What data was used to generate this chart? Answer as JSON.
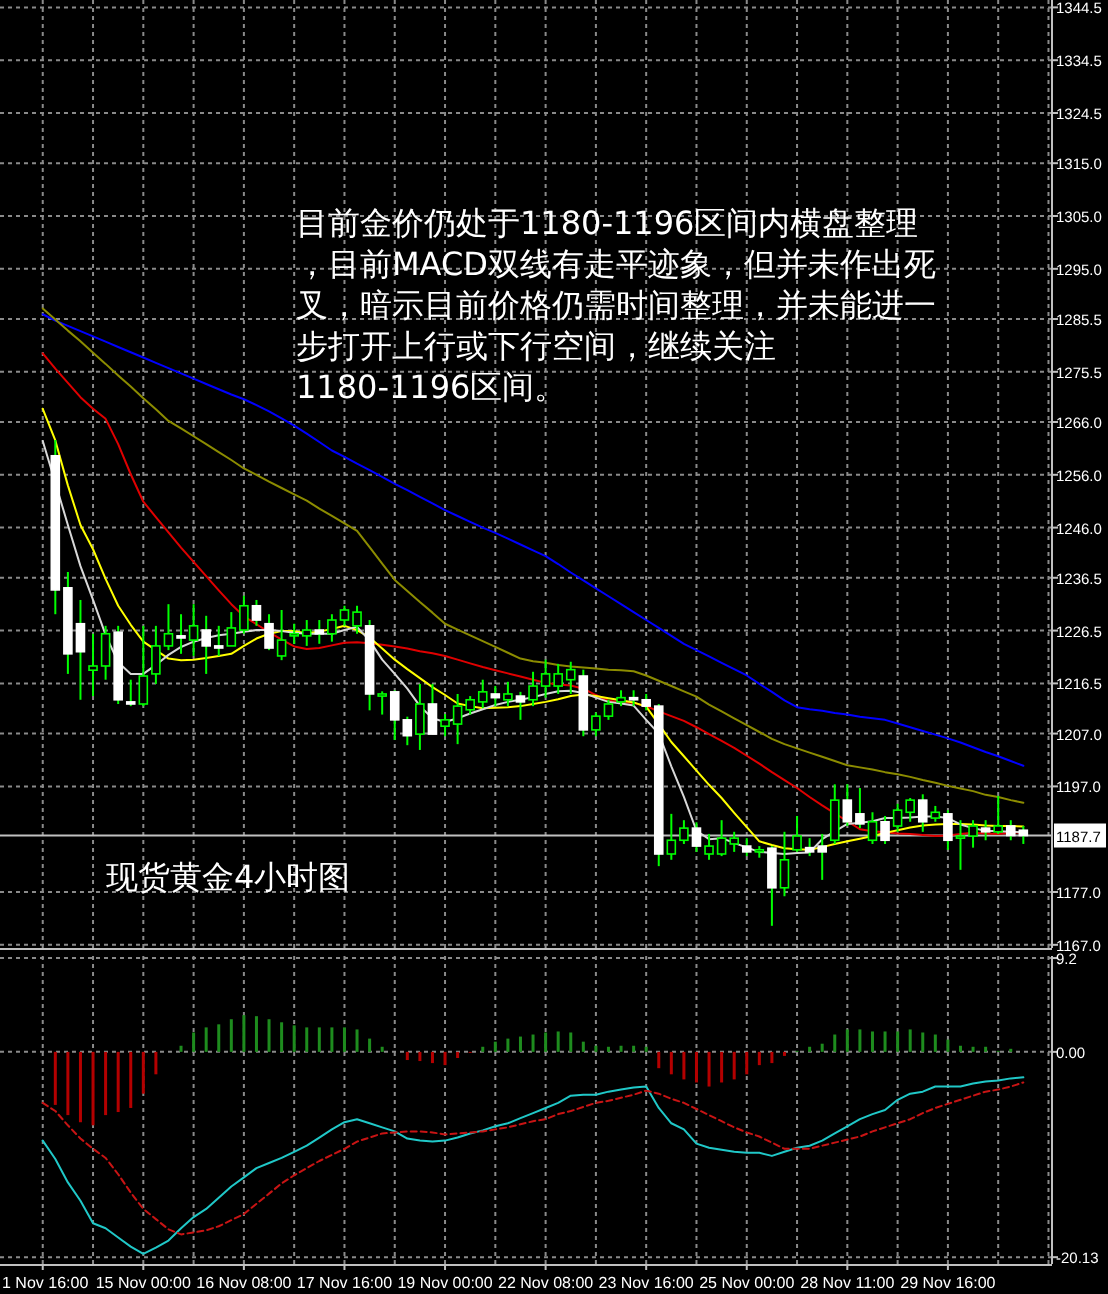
{
  "chart_data": [
    {
      "type": "candlestick",
      "categories": [
        null,
        null,
        null,
        null,
        null,
        null,
        null,
        null,
        null,
        null,
        null,
        null,
        null,
        null,
        null,
        null,
        null,
        null,
        null,
        null,
        null,
        null,
        null,
        null,
        null,
        null,
        null,
        null,
        null,
        null,
        null,
        null,
        null,
        null,
        null,
        null,
        null,
        null,
        null,
        null,
        null,
        null,
        null,
        null,
        null,
        null,
        null,
        null,
        null,
        null,
        null,
        null,
        null,
        null,
        null,
        null,
        null,
        null,
        null,
        null,
        null,
        null,
        null,
        null,
        null,
        null,
        null,
        null,
        null,
        null,
        null,
        null,
        null,
        null,
        null,
        null,
        null,
        null,
        null
      ],
      "ohlc": [
        null,
        [
          1259.6,
          1262.6,
          1229.6,
          1234.2
        ],
        [
          1234.6,
          1237.6,
          1218.3,
          1222.1
        ],
        [
          1227.8,
          1232.3,
          1213.4,
          1222.5
        ],
        [
          1219.0,
          1225.9,
          1214.1,
          1219.8
        ],
        [
          1219.8,
          1227.4,
          1217.2,
          1225.9
        ],
        [
          1226.2,
          1227.4,
          1212.6,
          1213.4
        ],
        [
          1213.0,
          1217.2,
          1212.2,
          1212.6
        ],
        [
          1212.6,
          1227.4,
          1212.2,
          1217.9
        ],
        [
          1218.3,
          1227.4,
          1216.4,
          1223.6
        ],
        [
          1223.6,
          1231.5,
          1222.8,
          1225.9
        ],
        [
          1225.5,
          1229.6,
          1222.1,
          1225.1
        ],
        [
          1224.7,
          1231.5,
          1221.7,
          1227.4
        ],
        [
          1226.6,
          1229.3,
          1218.3,
          1223.6
        ],
        [
          1223.6,
          1227.4,
          1221.7,
          1223.2
        ],
        [
          1223.6,
          1230.0,
          1223.6,
          1227.0
        ],
        [
          1226.6,
          1233.1,
          1225.9,
          1231.2
        ],
        [
          1231.2,
          1232.3,
          1227.4,
          1228.5
        ],
        [
          1227.8,
          1229.6,
          1222.8,
          1223.2
        ],
        [
          1221.7,
          1230.4,
          1220.9,
          1224.7
        ],
        [
          1225.5,
          1227.8,
          1224.0,
          1225.9
        ],
        [
          1225.5,
          1228.5,
          1223.6,
          1226.6
        ],
        [
          1226.6,
          1228.5,
          1224.0,
          1225.9
        ],
        [
          1225.9,
          1229.6,
          1224.4,
          1228.5
        ],
        [
          1228.5,
          1231.2,
          1227.4,
          1230.4
        ],
        [
          1227.4,
          1231.2,
          1225.9,
          1230.0
        ],
        [
          1227.4,
          1228.5,
          1211.4,
          1214.5
        ],
        [
          1214.1,
          1215.0,
          1210.6,
          1214.5
        ],
        [
          1214.9,
          1215.2,
          1205.8,
          1209.6
        ],
        [
          1209.6,
          1210.2,
          1204.8,
          1206.6
        ],
        [
          1206.9,
          1216.4,
          1203.9,
          1212.6
        ],
        [
          1212.6,
          1216.4,
          1206.9,
          1206.9
        ],
        [
          1208.4,
          1210.7,
          1206.5,
          1209.6
        ],
        [
          1208.8,
          1214.5,
          1205.0,
          1212.2
        ],
        [
          1211.5,
          1214.1,
          1210.6,
          1213.4
        ],
        [
          1213.0,
          1217.2,
          1211.8,
          1214.9
        ],
        [
          1214.5,
          1216.0,
          1212.2,
          1213.8
        ],
        [
          1213.4,
          1216.8,
          1212.2,
          1214.5
        ],
        [
          1214.1,
          1214.9,
          1209.6,
          1213.0
        ],
        [
          1213.4,
          1218.7,
          1212.2,
          1216.0
        ],
        [
          1216.0,
          1221.0,
          1213.8,
          1218.3
        ],
        [
          1216.0,
          1220.2,
          1214.5,
          1218.3
        ],
        [
          1217.2,
          1220.6,
          1214.5,
          1219.1
        ],
        [
          1217.9,
          1219.1,
          1206.5,
          1207.7
        ],
        [
          1207.7,
          1211.0,
          1206.5,
          1210.3
        ],
        [
          1210.3,
          1213.4,
          1209.6,
          1212.6
        ],
        [
          1213.0,
          1215.2,
          1212.2,
          1213.8
        ],
        [
          1213.8,
          1215.2,
          1212.2,
          1213.4
        ],
        [
          1213.4,
          1214.5,
          1211.4,
          1212.2
        ],
        [
          1212.2,
          1212.6,
          1181.9,
          1184.2
        ],
        [
          1184.2,
          1191.8,
          1183.1,
          1186.8
        ],
        [
          1186.8,
          1190.6,
          1186.1,
          1189.1
        ],
        [
          1189.1,
          1190.2,
          1184.6,
          1185.7
        ],
        [
          1184.2,
          1188.0,
          1183.1,
          1185.7
        ],
        [
          1184.2,
          1190.6,
          1183.8,
          1187.2
        ],
        [
          1186.1,
          1188.4,
          1184.6,
          1187.2
        ],
        [
          1185.7,
          1187.2,
          1183.8,
          1184.6
        ],
        [
          1184.6,
          1185.7,
          1183.5,
          1185.0
        ],
        [
          1185.3,
          1185.7,
          1170.6,
          1177.8
        ],
        [
          1177.8,
          1188.4,
          1176.2,
          1183.1
        ],
        [
          1185.0,
          1191.4,
          1184.6,
          1187.6
        ],
        [
          1185.4,
          1187.2,
          1183.8,
          1184.6
        ],
        [
          1185.7,
          1188.0,
          1179.3,
          1184.6
        ],
        [
          1186.8,
          1197.4,
          1186.1,
          1194.4
        ],
        [
          1194.4,
          1197.4,
          1189.5,
          1190.3
        ],
        [
          1191.8,
          1196.7,
          1189.1,
          1189.9
        ],
        [
          1186.8,
          1192.1,
          1186.1,
          1190.3
        ],
        [
          1190.3,
          1191.4,
          1186.1,
          1186.8
        ],
        [
          1189.5,
          1193.7,
          1188.4,
          1192.5
        ],
        [
          1192.1,
          1194.8,
          1190.3,
          1194.4
        ],
        [
          1194.4,
          1195.5,
          1188.4,
          1190.3
        ],
        [
          1191.0,
          1193.3,
          1190.3,
          1192.1
        ],
        [
          1191.8,
          1192.5,
          1185.0,
          1186.8
        ],
        [
          1187.2,
          1190.6,
          1181.2,
          1187.6
        ],
        [
          1187.6,
          1190.6,
          1185.4,
          1189.5
        ],
        [
          1189.1,
          1190.6,
          1186.8,
          1188.4
        ],
        [
          1188.4,
          1195.2,
          1188.0,
          1189.5
        ],
        [
          1189.5,
          1190.6,
          1186.8,
          1187.7
        ],
        [
          1188.7,
          1189.5,
          1186.1,
          1187.7
        ]
      ],
      "series": [
        {
          "type": "line",
          "color": "#0000ff",
          "values": [
            1286.4,
            1285.2,
            1284.2,
            1283.2,
            1282.2,
            1281.2,
            1280.2,
            1279.2,
            1278.2,
            1277.2,
            1276.2,
            1275.2,
            1274.2,
            1273.2,
            1272.2,
            1271.2,
            1270.3,
            1269.2,
            1268,
            1266.7,
            1265.3,
            1263.8,
            1262.2,
            1260.6,
            1259.4,
            1258.1,
            1256.9,
            1255.6,
            1254.3,
            1253.1,
            1251.8,
            1250.6,
            1249.3,
            1248.2,
            1247.1,
            1246,
            1245,
            1243.9,
            1242.8,
            1241.7,
            1240.6,
            1239.1,
            1237.5,
            1236,
            1234.5,
            1233,
            1231.5,
            1230,
            1228.5,
            1227,
            1225.5,
            1224,
            1222.8,
            1221.6,
            1220.4,
            1219.2,
            1218,
            1216.4,
            1214.9,
            1213.3,
            1212,
            1211.6,
            1211.3,
            1210.9,
            1210.6,
            1210.2,
            1209.9,
            1209.6,
            1208.9,
            1208.2,
            1207.5,
            1206.8,
            1206.1,
            1205.3,
            1204.4,
            1203.5,
            1202.7,
            1201.8,
            1200.9
          ]
        },
        {
          "type": "line",
          "color": "#8c8c00",
          "values": [
            1287.5,
            1285.4,
            1283.3,
            1281.3,
            1279.1,
            1277,
            1274.8,
            1272.7,
            1270.5,
            1268.4,
            1266.2,
            1264.8,
            1263.3,
            1261.8,
            1260.3,
            1258.8,
            1257.2,
            1256,
            1254.7,
            1253.5,
            1252.3,
            1251.1,
            1249.6,
            1248.2,
            1246.8,
            1245.4,
            1242.3,
            1239.2,
            1236.1,
            1234,
            1231.9,
            1229.9,
            1227.8,
            1226.7,
            1225.6,
            1224.5,
            1223.4,
            1222.3,
            1221.2,
            1220.7,
            1220.4,
            1220,
            1219.7,
            1219.5,
            1219.3,
            1219.1,
            1219,
            1218.8,
            1218,
            1217,
            1216,
            1215,
            1214,
            1212.5,
            1211.2,
            1209.9,
            1208.6,
            1207.3,
            1206,
            1205,
            1204.2,
            1203.4,
            1202.6,
            1201.8,
            1201,
            1200.6,
            1200.2,
            1199.7,
            1199.3,
            1198.8,
            1198.2,
            1197.7,
            1197.1,
            1196.6,
            1196.1,
            1195.4,
            1195,
            1194.4,
            1193.9
          ]
        },
        {
          "type": "line",
          "color": "#e00000",
          "values": [
            1279,
            1276.1,
            1273.4,
            1270.7,
            1268.5,
            1266.6,
            1261.8,
            1256.1,
            1250.9,
            1248,
            1245.1,
            1242.2,
            1239.5,
            1236.8,
            1234.1,
            1231.5,
            1229.2,
            1227.7,
            1226.2,
            1224.8,
            1223.5,
            1223,
            1223.2,
            1223.7,
            1224.2,
            1224.3,
            1224.1,
            1223.8,
            1223.5,
            1223.1,
            1222.6,
            1222.2,
            1221.7,
            1221,
            1220.3,
            1219.6,
            1219,
            1218.4,
            1217.8,
            1217.2,
            1216.6,
            1216.3,
            1216.1,
            1215.5,
            1214.3,
            1213.2,
            1213,
            1212.8,
            1212.2,
            1211.2,
            1210.3,
            1209.4,
            1208.2,
            1206.9,
            1205.6,
            1204.3,
            1202.8,
            1201.3,
            1199.7,
            1198.2,
            1196.7,
            1195,
            1193.4,
            1191.9,
            1190.4,
            1188.9,
            1188.5,
            1188.3,
            1188.1,
            1188,
            1187.8,
            1187.6,
            1187.7,
            1188,
            1188.2,
            1188.1,
            1188,
            1188.2,
            1188.3
          ]
        },
        {
          "type": "line",
          "color": "#ffff00",
          "values": [
            1268.5,
            1262.5,
            1254,
            1246.5,
            1241.9,
            1236.3,
            1231.2,
            1227.6,
            1224.4,
            1222.8,
            1221.2,
            1220.9,
            1221,
            1221.3,
            1221.7,
            1222.1,
            1223.6,
            1225,
            1225.9,
            1226.4,
            1226.4,
            1226,
            1226.3,
            1226.8,
            1227.4,
            1226.6,
            1225.2,
            1223.1,
            1221,
            1219.2,
            1217.5,
            1215.8,
            1214.3,
            1212.7,
            1212.2,
            1211.8,
            1211.9,
            1212,
            1212.2,
            1212.6,
            1213,
            1213.5,
            1214.1,
            1214.4,
            1214.1,
            1213.7,
            1213.3,
            1212.9,
            1212.1,
            1208.8,
            1205.4,
            1202.7,
            1200,
            1197.3,
            1194.8,
            1192,
            1189.3,
            1186.6,
            1185.9,
            1185.3,
            1185.1,
            1185,
            1185.5,
            1186.1,
            1186.6,
            1187.1,
            1187.6,
            1188.2,
            1188.7,
            1189.2,
            1189.6,
            1189.8,
            1189.9,
            1189.9,
            1189.8,
            1189.6,
            1189.5,
            1189.5,
            1189.4
          ]
        },
        {
          "type": "line",
          "color": "#d8d8d8",
          "values": [
            1262.4,
            1254.5,
            1246.5,
            1238.7,
            1232.3,
            1225.7,
            1220.5,
            1218.3,
            1218.3,
            1220,
            1221.9,
            1223.4,
            1224.4,
            1225.1,
            1225.6,
            1225.9,
            1226.3,
            1226.6,
            1226.6,
            1226.4,
            1226.1,
            1225.9,
            1225.9,
            1225.9,
            1226.6,
            1227.2,
            1224.6,
            1221,
            1218.3,
            1215.5,
            1212.2,
            1209.9,
            1209.2,
            1209.9,
            1210.8,
            1211.6,
            1212.4,
            1213,
            1213.4,
            1213.9,
            1214.5,
            1215,
            1215.1,
            1214.7,
            1213.8,
            1213,
            1212.7,
            1212.3,
            1209.6,
            1207,
            1200.8,
            1195,
            1188.6,
            1187,
            1187.2,
            1186.3,
            1185.4,
            1184.6,
            1184.4,
            1184.2,
            1184.4,
            1184.5,
            1187,
            1188.5,
            1189.9,
            1190.1,
            1190.4,
            1191,
            1191,
            1191.1,
            1191.3,
            1191.3,
            1191,
            1189.8,
            1189.1,
            1188.6,
            1188.5,
            1188.4,
            1188.3
          ]
        }
      ],
      "ylim": [
        1166.4,
        1345.9
      ],
      "yticks": [
        1344.5,
        1334.5,
        1324.5,
        {
          "value": 1315,
          "label": "1315.0"
        },
        {
          "value": 1305,
          "label": "1305.0"
        },
        {
          "value": 1295,
          "label": "1295.0"
        },
        1285.5,
        1275.5,
        {
          "value": 1266,
          "label": "1266.0"
        },
        {
          "value": 1256,
          "label": "1256.0"
        },
        {
          "value": 1246,
          "label": "1246.0"
        },
        1236.5,
        1226.5,
        1216.5,
        {
          "value": 1207,
          "label": "1207.0"
        },
        {
          "value": 1197,
          "label": "1197.0"
        },
        {
          "value": 1177,
          "label": "1177.0"
        },
        {
          "value": 1167,
          "label": "1167.0"
        }
      ],
      "grid": true,
      "tick_labels": "y",
      "ref_lines": [
        {
          "axis": "y",
          "value": 1187.7,
          "label": "1187.7",
          "color": "#c0c0c0"
        }
      ],
      "annotations": [
        "目前金价仍处于1180-1196区间内横盘整理，目前MACD双线有走平迹象，但并未作出死叉，暗示目前价格仍需时间整理，并未能进一步打开上行或下行空间，继续关注1180-1196区间。",
        "现货黄金4小时图"
      ]
    },
    {
      "type": "bar",
      "categories": [
        "1 Nov 16:00",
        null,
        null,
        null,
        null,
        null,
        null,
        null,
        "15 Nov 00:00",
        null,
        null,
        null,
        null,
        null,
        null,
        null,
        "16 Nov 08:00",
        null,
        null,
        null,
        null,
        null,
        null,
        null,
        "17 Nov 16:00",
        null,
        null,
        null,
        null,
        null,
        null,
        null,
        "19 Nov 00:00",
        null,
        null,
        null,
        null,
        null,
        null,
        null,
        "22 Nov 08:00",
        null,
        null,
        null,
        null,
        null,
        null,
        null,
        "23 Nov 16:00",
        null,
        null,
        null,
        null,
        null,
        null,
        null,
        "25 Nov 00:00",
        null,
        null,
        null,
        null,
        null,
        null,
        null,
        "28 Nov 11:00",
        null,
        null,
        null,
        null,
        null,
        null,
        null,
        "29 Nov 16:00",
        null,
        null,
        null,
        null,
        null,
        null
      ],
      "series": [
        {
          "type": "bar",
          "color": "#b40000",
          "values": [
            null,
            -5.2,
            -6.2,
            -6.9,
            -7.2,
            -6.2,
            -5.9,
            -5.5,
            -4.1,
            -2.2,
            null,
            null,
            null,
            null,
            null,
            null,
            null,
            null,
            null,
            null,
            null,
            null,
            null,
            null,
            null,
            null,
            null,
            null,
            null,
            -0.8,
            -0.9,
            -1.1,
            -1.3,
            -0.6,
            -0.1,
            null,
            null,
            null,
            null,
            null,
            null,
            null,
            null,
            null,
            null,
            null,
            null,
            null,
            null,
            -1.6,
            -2.2,
            -2.7,
            -3.0,
            -3.4,
            -3.0,
            -2.7,
            -2.2,
            -1.3,
            -1.1,
            -0.4,
            null,
            null,
            null,
            null,
            null,
            null,
            null,
            null,
            null,
            null,
            null,
            null,
            null,
            null,
            null,
            null,
            null,
            null,
            null
          ]
        },
        {
          "type": "bar",
          "color": "#1e8c1e",
          "values": [
            null,
            null,
            null,
            null,
            null,
            null,
            null,
            null,
            null,
            null,
            null,
            0.6,
            1.9,
            2.4,
            2.7,
            3.2,
            3.6,
            3.5,
            3.2,
            2.9,
            2.6,
            2.4,
            2.4,
            2.4,
            2.4,
            2.2,
            1.3,
            0.5,
            null,
            null,
            null,
            null,
            null,
            null,
            null,
            0.5,
            1.0,
            1.3,
            1.5,
            1.7,
            1.9,
            2.0,
            1.9,
            1.0,
            0.6,
            0.5,
            0.6,
            0.6,
            0.5,
            null,
            null,
            null,
            null,
            null,
            null,
            null,
            null,
            null,
            null,
            null,
            0.1,
            0.5,
            0.8,
            1.7,
            2.2,
            2.2,
            2.0,
            2.0,
            2.0,
            2.2,
            1.9,
            1.7,
            1.2,
            0.6,
            0.5,
            0.5,
            0.1,
            0.3,
            null
          ]
        },
        {
          "type": "line",
          "color": "#20c8c8",
          "values": [
            -8.7,
            -10.5,
            -12.8,
            -14.6,
            -16.8,
            -17.3,
            -18.2,
            -19.1,
            -19.8,
            -19.2,
            -18.5,
            -17.3,
            -16.2,
            -15.4,
            -14.3,
            -13.2,
            -12.3,
            -11.4,
            -10.9,
            -10.4,
            -9.8,
            -9.2,
            -8.4,
            -7.6,
            -6.9,
            -6.6,
            -7.0,
            -7.4,
            -7.8,
            -8.5,
            -8.7,
            -8.8,
            -8.7,
            -8.4,
            -8.0,
            -7.7,
            -7.3,
            -7.0,
            -6.5,
            -6.0,
            -5.5,
            -5.0,
            -4.3,
            -4.2,
            -4.2,
            -3.9,
            -3.7,
            -3.5,
            -3.4,
            -5.5,
            -7.0,
            -7.6,
            -9.0,
            -9.4,
            -9.6,
            -9.8,
            -9.9,
            -9.9,
            -10.2,
            -9.8,
            -9.4,
            -9.2,
            -8.7,
            -8.0,
            -7.3,
            -6.6,
            -6.1,
            -5.7,
            -4.7,
            -4.1,
            -3.9,
            -3.4,
            -3.4,
            -3.4,
            -3.1,
            -2.9,
            -2.8,
            -2.6,
            -2.5
          ]
        },
        {
          "type": "line",
          "color": "#c81414",
          "line_style": "dashed",
          "values": [
            -5.0,
            -5.8,
            -7.2,
            -8.5,
            -9.5,
            -10.4,
            -12.0,
            -13.8,
            -15.4,
            -16.4,
            -17.4,
            -17.9,
            -17.7,
            -17.5,
            -17.1,
            -16.5,
            -15.9,
            -14.9,
            -13.9,
            -12.9,
            -12.1,
            -11.4,
            -10.7,
            -10.1,
            -9.5,
            -8.8,
            -8.4,
            -8.0,
            -7.9,
            -7.8,
            -7.8,
            -7.9,
            -8.1,
            -8.0,
            -7.9,
            -7.8,
            -7.6,
            -7.4,
            -7.1,
            -6.8,
            -6.6,
            -6.1,
            -5.8,
            -5.4,
            -5.0,
            -4.8,
            -4.5,
            -4.2,
            -3.8,
            -4.1,
            -4.6,
            -5.0,
            -5.6,
            -6.2,
            -6.8,
            -7.4,
            -7.9,
            -8.3,
            -8.9,
            -9.5,
            -9.5,
            -9.5,
            -9.2,
            -8.9,
            -8.6,
            -8.3,
            -7.8,
            -7.4,
            -7.0,
            -6.6,
            -6.0,
            -5.5,
            -5.1,
            -4.7,
            -4.3,
            -3.9,
            -3.7,
            -3.4,
            -3.0
          ]
        }
      ],
      "ylim": [
        -20.8,
        9.4
      ],
      "yticks": [
        9.2,
        {
          "value": 0,
          "label": "0.00"
        },
        -20.13
      ],
      "grid": true
    }
  ]
}
